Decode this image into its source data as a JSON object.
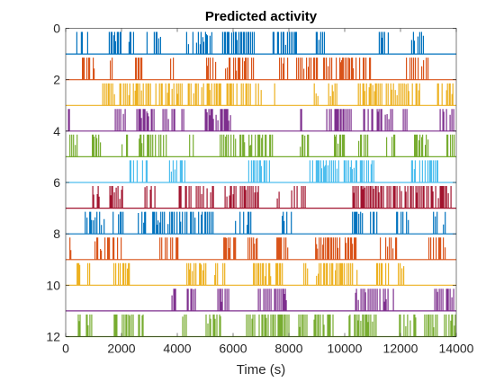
{
  "chart_data": {
    "type": "line",
    "title": "Predicted activity",
    "xlabel": "Time (s)",
    "ylabel": "",
    "xlim": [
      0,
      14000
    ],
    "ylim": [
      0,
      12
    ],
    "y_direction": "reversed",
    "xticks": [
      0,
      2000,
      4000,
      6000,
      8000,
      10000,
      12000,
      14000
    ],
    "yticks": [
      0,
      2,
      4,
      6,
      8,
      10,
      12
    ],
    "xtick_labels": [
      "0",
      "2000",
      "4000",
      "6000",
      "8000",
      "10000",
      "12000",
      "14000"
    ],
    "ytick_labels": [
      "0",
      "2",
      "4",
      "6",
      "8",
      "10",
      "12"
    ],
    "grid": false,
    "legend": "none",
    "axis_color": "#262626",
    "series": [
      {
        "baseline": 1,
        "color": "#0072BD",
        "first_event": 400,
        "density": 0.55
      },
      {
        "baseline": 2,
        "color": "#D95319",
        "first_event": 600,
        "density": 0.5
      },
      {
        "baseline": 3,
        "color": "#EDB120",
        "first_event": 200,
        "density": 0.5
      },
      {
        "baseline": 4,
        "color": "#7E2F8E",
        "first_event": 100,
        "density": 0.5
      },
      {
        "baseline": 5,
        "color": "#77AC30",
        "first_event": 150,
        "density": 0.55
      },
      {
        "baseline": 6,
        "color": "#4DBEEE",
        "first_event": 400,
        "density": 0.55
      },
      {
        "baseline": 7,
        "color": "#A2142F",
        "first_event": 100,
        "density": 0.6
      },
      {
        "baseline": 8,
        "color": "#0072BD",
        "first_event": 700,
        "density": 0.55
      },
      {
        "baseline": 9,
        "color": "#D95319",
        "first_event": 150,
        "density": 0.5
      },
      {
        "baseline": 10,
        "color": "#EDB120",
        "first_event": 150,
        "density": 0.5
      },
      {
        "baseline": 11,
        "color": "#7E2F8E",
        "first_event": 100,
        "density": 0.55
      },
      {
        "baseline": 12,
        "color": "#77AC30",
        "first_event": 450,
        "density": 0.55
      }
    ]
  }
}
